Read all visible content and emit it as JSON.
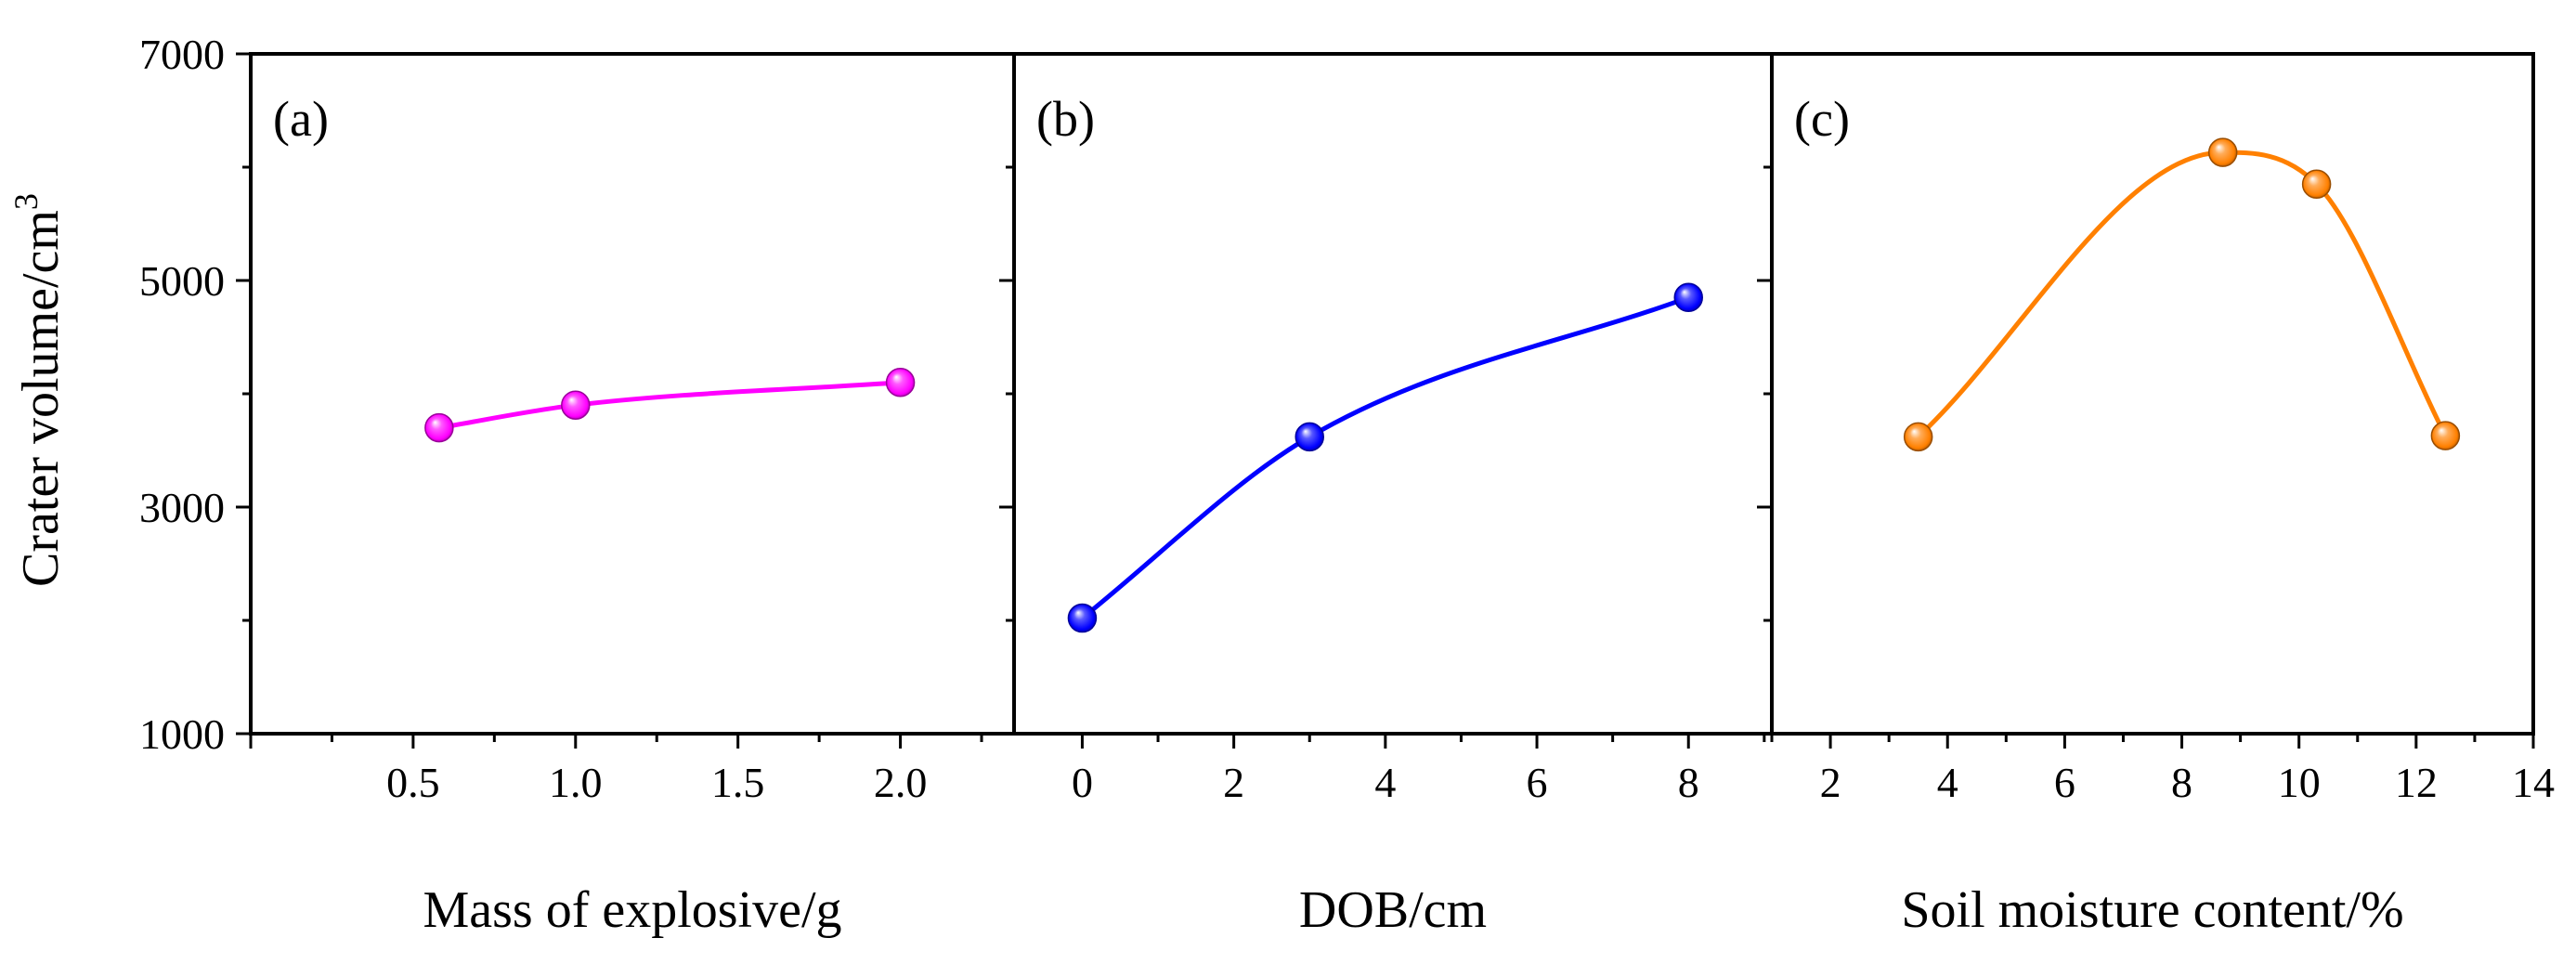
{
  "chart_data": [
    {
      "type": "line",
      "panel_label": "(a)",
      "xlabel": "Mass of explosive/g",
      "ylabel_text": "Crater volume/cm",
      "ylabel_sup": "3",
      "ylim": [
        1000,
        7000
      ],
      "y_ticks": [
        "1000",
        "3000",
        "5000",
        "7000"
      ],
      "xlim": [
        0.0,
        2.35
      ],
      "x_ticks": [
        {
          "value": 0.5,
          "label": "0.5"
        },
        {
          "value": 1.0,
          "label": "1.0"
        },
        {
          "value": 1.5,
          "label": "1.5"
        },
        {
          "value": 2.0,
          "label": "2.0"
        }
      ],
      "series": [
        {
          "name": "Mass of explosive",
          "color": "#ff00ff",
          "x": [
            0.58,
            1.0,
            2.0
          ],
          "y": [
            3700,
            3900,
            4100
          ]
        }
      ]
    },
    {
      "type": "line",
      "panel_label": "(b)",
      "xlabel": "DOB/cm",
      "ylim": [
        1000,
        7000
      ],
      "xlim": [
        -0.9,
        9.1
      ],
      "x_ticks": [
        {
          "value": 0,
          "label": "0"
        },
        {
          "value": 2,
          "label": "2"
        },
        {
          "value": 4,
          "label": "4"
        },
        {
          "value": 6,
          "label": "6"
        },
        {
          "value": 8,
          "label": "8"
        }
      ],
      "series": [
        {
          "name": "DOB",
          "color": "#0000ff",
          "x": [
            0,
            3,
            8
          ],
          "y": [
            2020,
            3620,
            4850
          ]
        }
      ]
    },
    {
      "type": "line",
      "panel_label": "(c)",
      "xlabel": "Soil moisture content/%",
      "ylim": [
        1000,
        7000
      ],
      "xlim": [
        1.0,
        14.0
      ],
      "x_ticks": [
        {
          "value": 2,
          "label": "2"
        },
        {
          "value": 4,
          "label": "4"
        },
        {
          "value": 6,
          "label": "6"
        },
        {
          "value": 8,
          "label": "8"
        },
        {
          "value": 10,
          "label": "10"
        },
        {
          "value": 12,
          "label": "12"
        },
        {
          "value": 14,
          "label": "14"
        }
      ],
      "series": [
        {
          "name": "Soil moisture content",
          "color": "#ff8000",
          "x": [
            3.5,
            8.7,
            10.3,
            12.5
          ],
          "y": [
            3620,
            6130,
            5850,
            3630
          ]
        }
      ]
    }
  ]
}
